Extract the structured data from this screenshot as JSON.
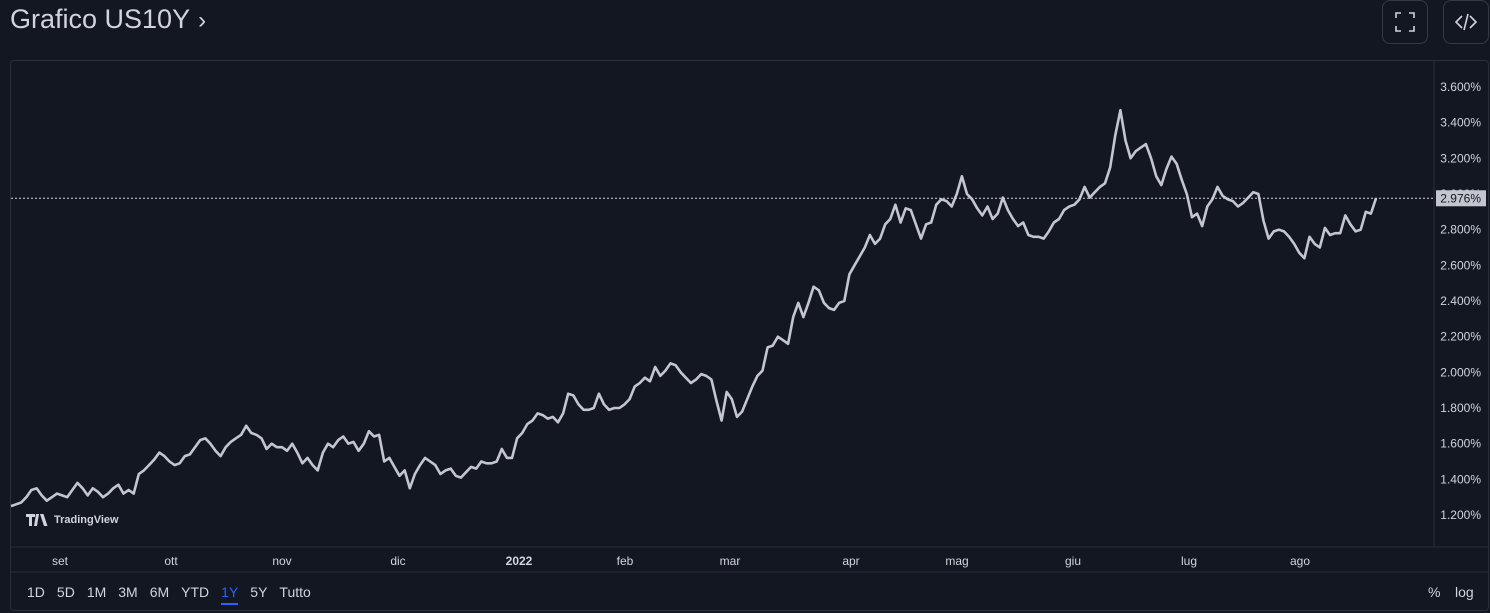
{
  "header": {
    "title": "Grafico US10Y",
    "chevron": "›",
    "fullscreen_icon": "fullscreen-icon",
    "embed_icon": "code-embed-icon"
  },
  "colors": {
    "background": "#131722",
    "line": "#c3c6ce",
    "text": "#d1d4dc",
    "active": "#2962ff",
    "border": "#2a2e39"
  },
  "logo": {
    "text": "TradingView",
    "icon": "tradingview-logo-icon"
  },
  "timeframes": [
    {
      "label": "1D",
      "active": false
    },
    {
      "label": "5D",
      "active": false
    },
    {
      "label": "1M",
      "active": false
    },
    {
      "label": "3M",
      "active": false
    },
    {
      "label": "6M",
      "active": false
    },
    {
      "label": "YTD",
      "active": false
    },
    {
      "label": "1Y",
      "active": true
    },
    {
      "label": "5Y",
      "active": false
    },
    {
      "label": "Tutto",
      "active": false
    }
  ],
  "scale_options": {
    "percent": "%",
    "log": "log"
  },
  "chart_data": {
    "type": "line",
    "title": "Grafico US10Y",
    "xlabel": "",
    "ylabel": "",
    "grid": false,
    "ylim": [
      1.1,
      3.74
    ],
    "y_ticks": [
      "1.200%",
      "1.400%",
      "1.600%",
      "1.800%",
      "2.000%",
      "2.200%",
      "2.400%",
      "2.600%",
      "2.800%",
      "3.000%",
      "3.200%",
      "3.400%",
      "3.600%"
    ],
    "x_tick_labels": [
      {
        "label": "set",
        "bold": false
      },
      {
        "label": "ott",
        "bold": false
      },
      {
        "label": "nov",
        "bold": false
      },
      {
        "label": "dic",
        "bold": false
      },
      {
        "label": "2022",
        "bold": true
      },
      {
        "label": "feb",
        "bold": false
      },
      {
        "label": "mar",
        "bold": false
      },
      {
        "label": "apr",
        "bold": false
      },
      {
        "label": "mag",
        "bold": false
      },
      {
        "label": "giu",
        "bold": false
      },
      {
        "label": "lug",
        "bold": false
      },
      {
        "label": "ago",
        "bold": false
      }
    ],
    "last_value": 2.976,
    "last_value_label": "2.976%",
    "series": [
      {
        "values": [
          1.25,
          1.26,
          1.27,
          1.3,
          1.34,
          1.35,
          1.31,
          1.28,
          1.3,
          1.32,
          1.31,
          1.3,
          1.34,
          1.38,
          1.35,
          1.31,
          1.35,
          1.33,
          1.3,
          1.32,
          1.35,
          1.37,
          1.32,
          1.34,
          1.32,
          1.43,
          1.45,
          1.48,
          1.51,
          1.55,
          1.53,
          1.5,
          1.48,
          1.49,
          1.53,
          1.54,
          1.58,
          1.62,
          1.63,
          1.6,
          1.56,
          1.53,
          1.58,
          1.61,
          1.63,
          1.65,
          1.7,
          1.66,
          1.65,
          1.63,
          1.57,
          1.6,
          1.58,
          1.58,
          1.56,
          1.6,
          1.55,
          1.49,
          1.52,
          1.48,
          1.45,
          1.55,
          1.6,
          1.58,
          1.62,
          1.64,
          1.6,
          1.61,
          1.56,
          1.6,
          1.67,
          1.64,
          1.65,
          1.5,
          1.52,
          1.47,
          1.42,
          1.45,
          1.35,
          1.43,
          1.48,
          1.52,
          1.5,
          1.48,
          1.43,
          1.45,
          1.46,
          1.42,
          1.41,
          1.44,
          1.47,
          1.46,
          1.5,
          1.49,
          1.49,
          1.5,
          1.57,
          1.52,
          1.52,
          1.63,
          1.66,
          1.71,
          1.73,
          1.77,
          1.76,
          1.74,
          1.75,
          1.72,
          1.77,
          1.88,
          1.87,
          1.82,
          1.79,
          1.79,
          1.8,
          1.88,
          1.82,
          1.79,
          1.8,
          1.8,
          1.82,
          1.85,
          1.92,
          1.94,
          1.97,
          1.95,
          2.03,
          1.98,
          2.01,
          2.05,
          2.04,
          2.0,
          1.97,
          1.94,
          1.96,
          1.99,
          1.98,
          1.96,
          1.84,
          1.73,
          1.89,
          1.85,
          1.75,
          1.78,
          1.85,
          1.92,
          1.98,
          2.01,
          2.14,
          2.15,
          2.2,
          2.18,
          2.16,
          2.31,
          2.39,
          2.31,
          2.39,
          2.48,
          2.46,
          2.39,
          2.36,
          2.35,
          2.39,
          2.4,
          2.55,
          2.6,
          2.65,
          2.7,
          2.77,
          2.72,
          2.75,
          2.83,
          2.86,
          2.94,
          2.84,
          2.92,
          2.91,
          2.83,
          2.75,
          2.83,
          2.84,
          2.94,
          2.97,
          2.96,
          2.93,
          3.0,
          3.1,
          3.0,
          2.97,
          2.92,
          2.88,
          2.93,
          2.86,
          2.89,
          2.98,
          2.91,
          2.86,
          2.82,
          2.84,
          2.77,
          2.76,
          2.76,
          2.75,
          2.79,
          2.84,
          2.86,
          2.91,
          2.93,
          2.94,
          2.97,
          3.04,
          2.98,
          3.01,
          3.04,
          3.06,
          3.15,
          3.33,
          3.47,
          3.3,
          3.2,
          3.24,
          3.26,
          3.28,
          3.2,
          3.1,
          3.05,
          3.14,
          3.21,
          3.17,
          3.08,
          3.0,
          2.87,
          2.89,
          2.82,
          2.93,
          2.97,
          3.04,
          2.99,
          2.97,
          2.96,
          2.93,
          2.95,
          2.98,
          3.01,
          3.0,
          2.85,
          2.75,
          2.79,
          2.8,
          2.79,
          2.76,
          2.72,
          2.67,
          2.64,
          2.76,
          2.72,
          2.7,
          2.81,
          2.77,
          2.78,
          2.78,
          2.88,
          2.83,
          2.79,
          2.8,
          2.9,
          2.89,
          2.976
        ]
      }
    ]
  }
}
